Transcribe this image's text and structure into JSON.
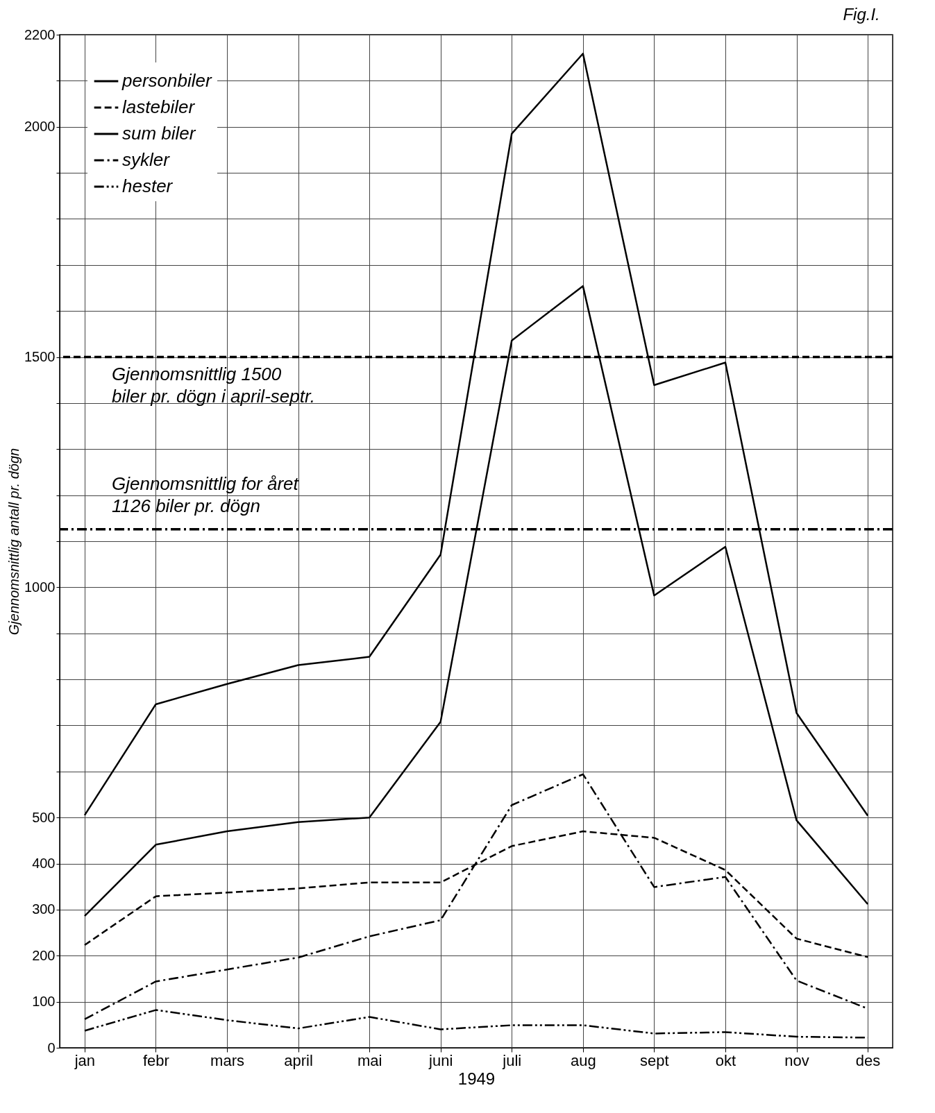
{
  "chart_data": {
    "type": "line",
    "title": "Fig.I.",
    "xlabel": "1949",
    "ylabel": "Gjennomsnittlig antall pr. dögn",
    "categories": [
      "jan",
      "febr",
      "mars",
      "april",
      "mai",
      "juni",
      "juli",
      "aug",
      "sept",
      "okt",
      "nov",
      "des"
    ],
    "ylim": [
      0,
      2200
    ],
    "yticks": [
      0,
      100,
      200,
      300,
      400,
      500,
      {
        "value": 600,
        "label": null
      },
      {
        "value": 700,
        "label": null
      },
      {
        "value": 800,
        "label": null
      },
      {
        "value": 900,
        "label": null
      },
      1000,
      {
        "value": 1100,
        "label": null
      },
      {
        "value": 1200,
        "label": null
      },
      {
        "value": 1300,
        "label": null
      },
      {
        "value": 1400,
        "label": null
      },
      1500,
      {
        "value": 1600,
        "label": null
      },
      {
        "value": 1700,
        "label": null
      },
      {
        "value": 1800,
        "label": null
      },
      {
        "value": 1900,
        "label": null
      },
      2000,
      {
        "value": 2100,
        "label": null
      },
      2200
    ],
    "grid": true,
    "legend": "top left",
    "marker": "none",
    "series": [
      {
        "name": "personbiler",
        "color": "#000000",
        "line_style": "solid",
        "values": [
          286,
          441,
          470,
          490,
          500,
          708,
          1536,
          1654,
          982,
          1088,
          494,
          312
        ]
      },
      {
        "name": "lastebiler",
        "color": "#000000",
        "line_style": "dashed",
        "values": [
          223,
          329,
          337,
          346,
          359,
          359,
          438,
          470,
          456,
          386,
          237,
          197
        ]
      },
      {
        "name": "sum biler",
        "color": "#000000",
        "line_style": "solid",
        "values": [
          505,
          746,
          790,
          831,
          849,
          1071,
          1985,
          2159,
          1439,
          1488,
          727,
          504
        ]
      },
      {
        "name": "sykler",
        "color": "#000000",
        "line_style": "dashdot",
        "values": [
          62,
          144,
          170,
          196,
          242,
          277,
          527,
          594,
          349,
          371,
          146,
          85
        ]
      },
      {
        "name": "hester",
        "color": "#000000",
        "line_style": "dashdotdot",
        "values": [
          37,
          82,
          60,
          42,
          67,
          40,
          49,
          49,
          31,
          34,
          24,
          22
        ]
      }
    ],
    "ref_lines": [
      {
        "axis": "y",
        "value": 1500,
        "label": "Gjennomsnittlig 1500\nbiler pr. dögn i april-septr.",
        "line_style": "dashed"
      },
      {
        "axis": "y",
        "value": 1126,
        "label": "Gjennomsnittlig for året\n1126 biler pr. dögn",
        "line_style": "dashdot"
      }
    ]
  }
}
